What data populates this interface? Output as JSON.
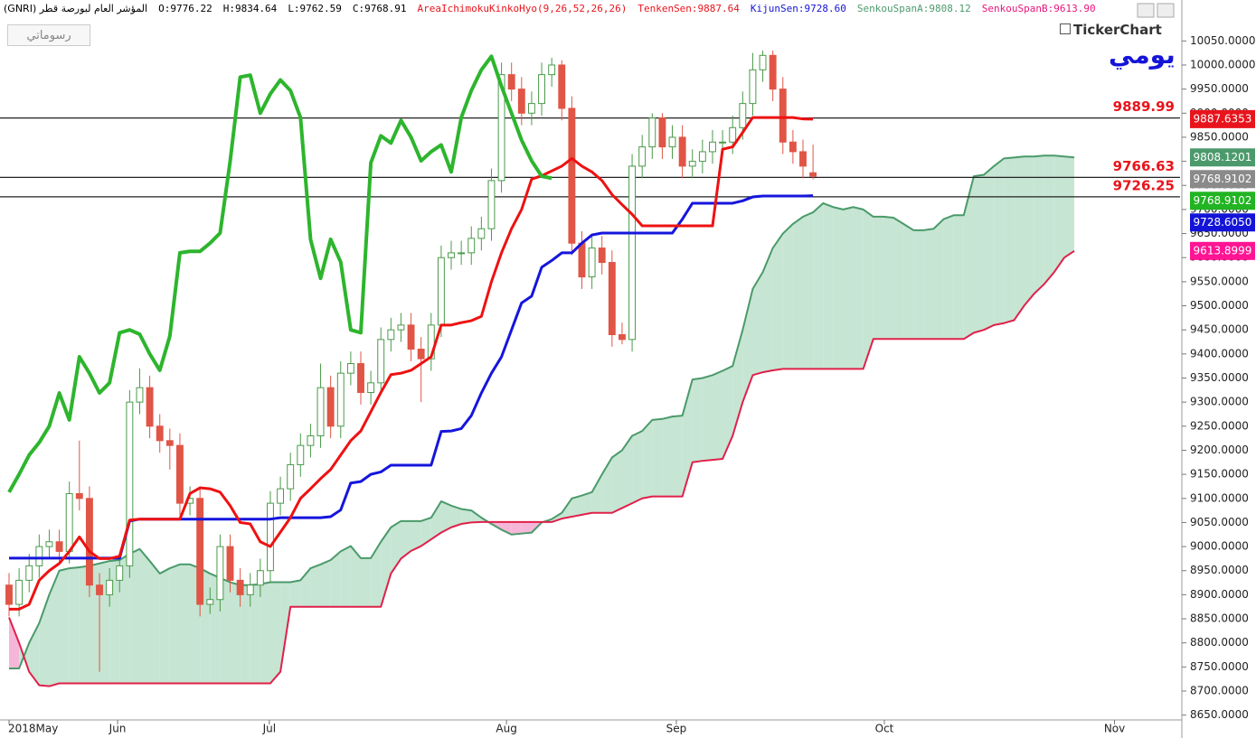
{
  "chart_data": {
    "type": "candlestick",
    "title_items": [
      {
        "text": "المؤشر العام لبورصة قطر (GNRI)",
        "color": "#000000"
      },
      {
        "text": "O:9776.22",
        "color": "#000000"
      },
      {
        "text": "H:9834.64",
        "color": "#000000"
      },
      {
        "text": "L:9762.59",
        "color": "#000000"
      },
      {
        "text": "C:9768.91",
        "color": "#000000"
      },
      {
        "text": "AreaIchimokuKinkoHyo(9,26,52,26,26)",
        "color": "#e8141c"
      },
      {
        "text": "TenkenSen:9887.64",
        "color": "#e8141c"
      },
      {
        "text": "KijunSen:9728.60",
        "color": "#1414d8"
      },
      {
        "text": "SenkouSpanA:9808.12",
        "color": "#4c9a6c"
      },
      {
        "text": "SenkouSpanB:9613.90",
        "color": "#e8147a"
      }
    ],
    "button_label": "رسوماتي",
    "logo": "TickerChart",
    "period": "يومي",
    "up_color": "#4a9a4a",
    "down_color": "#e05545",
    "open": [
      8920,
      8880,
      8930,
      8960,
      9000,
      9010,
      8990,
      9110,
      9100,
      8920,
      8900,
      8930,
      8960,
      9300,
      9330,
      9250,
      9220,
      9210,
      9090,
      9100,
      8880,
      8890,
      9000,
      8930,
      8900,
      8920,
      8950,
      9090,
      9120,
      9170,
      9210,
      9230,
      9330,
      9250,
      9360,
      9380,
      9320,
      9340,
      9430,
      9450,
      9460,
      9410,
      9390,
      9460,
      9600,
      9610,
      9610,
      9640,
      9660,
      9760,
      9980,
      9950,
      9900,
      9920,
      9980,
      10000,
      9910,
      9630,
      9560,
      9620,
      9590,
      9440,
      9430,
      9790,
      9830,
      9890,
      9830,
      9850,
      9790,
      9800,
      9820,
      9840,
      9840,
      9870,
      9920,
      9990,
      10020,
      9950,
      9840,
      9820,
      9776.22
    ],
    "high": [
      8945,
      8955,
      8985,
      9025,
      9035,
      9035,
      9135,
      9220,
      9125,
      8945,
      8955,
      8985,
      9325,
      9370,
      9355,
      9275,
      9245,
      9235,
      9125,
      9125,
      8915,
      9025,
      9025,
      8955,
      8945,
      8975,
      9115,
      9145,
      9195,
      9235,
      9255,
      9380,
      9355,
      9385,
      9405,
      9405,
      9365,
      9455,
      9475,
      9485,
      9485,
      9435,
      9485,
      9625,
      9635,
      9635,
      9665,
      9685,
      9785,
      10005,
      10005,
      9975,
      9945,
      10005,
      10015,
      10010,
      9935,
      9655,
      9645,
      9645,
      9615,
      9465,
      9815,
      9855,
      9900,
      9900,
      9875,
      9875,
      9825,
      9845,
      9865,
      9865,
      9895,
      9945,
      10025,
      10030,
      10030,
      9975,
      9865,
      9845,
      9834.64
    ],
    "low": [
      8855,
      8855,
      8905,
      8935,
      8975,
      8965,
      8965,
      9075,
      8895,
      8740,
      8875,
      8905,
      8935,
      9275,
      9225,
      9195,
      9160,
      9065,
      9065,
      8855,
      8860,
      8865,
      8905,
      8875,
      8875,
      8895,
      8925,
      9065,
      9095,
      9145,
      9185,
      9205,
      9225,
      9225,
      9335,
      9295,
      9295,
      9315,
      9405,
      9425,
      9385,
      9300,
      9365,
      9435,
      9575,
      9585,
      9585,
      9615,
      9635,
      9735,
      9925,
      9875,
      9875,
      9895,
      9955,
      9885,
      9605,
      9535,
      9535,
      9565,
      9415,
      9420,
      9405,
      9765,
      9805,
      9805,
      9805,
      9765,
      9765,
      9775,
      9795,
      9815,
      9815,
      9845,
      9895,
      9965,
      9925,
      9815,
      9795,
      9765,
      9762.59
    ],
    "close": [
      8880,
      8930,
      8960,
      9000,
      9010,
      8990,
      9110,
      9100,
      8920,
      8900,
      8930,
      8960,
      9300,
      9330,
      9250,
      9220,
      9210,
      9090,
      9100,
      8880,
      8890,
      9000,
      8930,
      8900,
      8920,
      8950,
      9090,
      9120,
      9170,
      9210,
      9230,
      9330,
      9250,
      9360,
      9380,
      9320,
      9340,
      9430,
      9450,
      9460,
      9410,
      9390,
      9460,
      9600,
      9610,
      9610,
      9640,
      9660,
      9760,
      9980,
      9950,
      9900,
      9920,
      9980,
      10000,
      9910,
      9630,
      9560,
      9620,
      9590,
      9440,
      9430,
      9790,
      9830,
      9890,
      9830,
      9850,
      9790,
      9800,
      9820,
      9840,
      9840,
      9870,
      9920,
      9990,
      10020,
      9950,
      9840,
      9820,
      9790,
      9768.91
    ],
    "tenkan": {
      "color": "#ee1111",
      "values": [
        8870,
        8870,
        8880,
        8930,
        8950,
        8965,
        8990,
        9020,
        8990,
        8975,
        8975,
        8980,
        9055,
        9057,
        9057,
        9057,
        9057,
        9057,
        9110,
        9122,
        9120,
        9113,
        9085,
        9050,
        9047,
        9010,
        9000,
        9030,
        9060,
        9100,
        9120,
        9141,
        9160,
        9190,
        9220,
        9240,
        9280,
        9320,
        9357,
        9360,
        9366,
        9380,
        9394,
        9460,
        9460,
        9465,
        9469,
        9478,
        9550,
        9610,
        9660,
        9700,
        9763,
        9770,
        9780,
        9790,
        9806,
        9790,
        9778,
        9760,
        9731,
        9710,
        9690,
        9666,
        9666,
        9666,
        9666,
        9666,
        9666,
        9666,
        9666,
        9825,
        9830,
        9860,
        9891,
        9891,
        9891,
        9891,
        9891,
        9888,
        9887.64
      ]
    },
    "kijun": {
      "color": "#1515dd",
      "values": [
        8976,
        8976,
        8976,
        8976,
        8976,
        8976,
        8976,
        8976,
        8976,
        8976,
        8976,
        8976,
        9053,
        9057,
        9057,
        9057,
        9057,
        9057,
        9057,
        9057,
        9057,
        9057,
        9057,
        9057,
        9057,
        9057,
        9057,
        9060,
        9060,
        9060,
        9060,
        9060,
        9062,
        9076,
        9132,
        9135,
        9150,
        9155,
        9169,
        9169,
        9169,
        9169,
        9169,
        9239,
        9240,
        9245,
        9272,
        9319,
        9360,
        9394,
        9450,
        9506,
        9520,
        9580,
        9594,
        9610,
        9610,
        9630,
        9647,
        9651,
        9651,
        9651,
        9651,
        9651,
        9651,
        9651,
        9651,
        9680,
        9713,
        9713,
        9713,
        9713,
        9713,
        9718,
        9726,
        9728,
        9728,
        9728,
        9728,
        9728,
        9728.605
      ]
    },
    "chikou": {
      "color": "#2db52d",
      "values": [
        9113,
        9150,
        9190,
        9216,
        9250,
        9319,
        9263,
        9394,
        9360,
        9319,
        9340,
        9444,
        9450,
        9441,
        9400,
        9366,
        9437,
        9610,
        9613,
        9613,
        9630,
        9651,
        9800,
        9975,
        9979,
        9900,
        9940,
        9969,
        9947,
        9891,
        9638,
        9557,
        9638,
        9591,
        9450,
        9444,
        9797,
        9853,
        9838,
        9885,
        9850,
        9801,
        9820,
        9834,
        9778,
        9891,
        9947,
        9990,
        10018,
        9956,
        9900,
        9844,
        9801,
        9769,
        9765
      ]
    },
    "span_a": {
      "color": "#4a9a6a",
      "values": [
        8747,
        8747,
        8800,
        8841,
        8900,
        8950,
        8955,
        8957,
        8960,
        8965,
        8970,
        8972,
        8985,
        8995,
        8970,
        8944,
        8955,
        8963,
        8963,
        8955,
        8944,
        8935,
        8926,
        8920,
        8920,
        8922,
        8926,
        8926,
        8926,
        8930,
        8955,
        8963,
        8972,
        8990,
        9001,
        8976,
        8976,
        9010,
        9040,
        9053,
        9053,
        9053,
        9060,
        9094,
        9085,
        9078,
        9075,
        9060,
        9047,
        9035,
        9025,
        9027,
        9029,
        9050,
        9057,
        9070,
        9100,
        9106,
        9113,
        9150,
        9185,
        9200,
        9230,
        9240,
        9263,
        9265,
        9270,
        9272,
        9347,
        9350,
        9356,
        9365,
        9375,
        9450,
        9535,
        9570,
        9620,
        9650,
        9670,
        9685,
        9694,
        9713,
        9705,
        9700,
        9705,
        9700,
        9685,
        9685,
        9683,
        9670,
        9657,
        9657,
        9660,
        9680,
        9688,
        9688,
        9769,
        9772,
        9790,
        9806,
        9808,
        9810,
        9810,
        9812,
        9812,
        9810,
        9808.12
      ]
    },
    "span_b": {
      "color": "#e0204a",
      "values": [
        8853,
        8800,
        8740,
        8712,
        8710,
        8716,
        8716,
        8716,
        8716,
        8716,
        8716,
        8716,
        8716,
        8716,
        8716,
        8716,
        8716,
        8716,
        8716,
        8716,
        8716,
        8716,
        8716,
        8716,
        8716,
        8716,
        8716,
        8740,
        8875,
        8875,
        8875,
        8875,
        8875,
        8875,
        8875,
        8875,
        8875,
        8875,
        8944,
        8975,
        8991,
        9001,
        9015,
        9029,
        9040,
        9047,
        9050,
        9051,
        9051,
        9051,
        9051,
        9051,
        9051,
        9051,
        9051,
        9058,
        9062,
        9066,
        9070,
        9070,
        9070,
        9080,
        9090,
        9100,
        9104,
        9104,
        9104,
        9104,
        9175,
        9178,
        9180,
        9182,
        9230,
        9300,
        9356,
        9362,
        9366,
        9369,
        9369,
        9369,
        9369,
        9369,
        9369,
        9369,
        9369,
        9369,
        9431,
        9431,
        9431,
        9431,
        9431,
        9431,
        9431,
        9431,
        9431,
        9431,
        9444,
        9450,
        9460,
        9464,
        9470,
        9500,
        9525,
        9545,
        9570,
        9600,
        9613.9
      ]
    },
    "cloud_up_color": "#c6e5d3",
    "cloud_down_color": "#f6b6d8",
    "horizontal_lines": [
      9889.99,
      9766.63,
      9726.25
    ],
    "horizontal_line_label_color": "#e8141c",
    "price_tags": [
      {
        "value": 9887.6353,
        "label": "9887.6353",
        "color": "#e8141c"
      },
      {
        "value": 9808.1201,
        "label": "9808.1201",
        "color": "#4c9a6c"
      },
      {
        "value": 9768.9102,
        "label": "9768.9102",
        "color": "#8a8a8a"
      },
      {
        "value": 9768.9102,
        "label": "9768.9102",
        "color": "#22b422"
      },
      {
        "value": 9728.605,
        "label": "9728.6050",
        "color": "#1414d8"
      },
      {
        "value": 9613.8999,
        "label": "9613.8999",
        "color": "#ff1493"
      }
    ],
    "xlim": [
      -0.9,
      116.7
    ],
    "xticks": [
      {
        "value": 0,
        "label": "2018May"
      },
      {
        "value": 10.8,
        "label": "Jun"
      },
      {
        "value": 25.9,
        "label": "Jul"
      },
      {
        "value": 49.5,
        "label": "Aug"
      },
      {
        "value": 66.4,
        "label": "Sep"
      },
      {
        "value": 87.1,
        "label": "Oct"
      },
      {
        "value": 110,
        "label": "Nov"
      }
    ],
    "ylim": [
      8640,
      10135
    ],
    "yticks": [
      {
        "value": 8650,
        "label": "8650.0000"
      },
      {
        "value": 8700,
        "label": "8700.0000"
      },
      {
        "value": 8750,
        "label": "8750.0000"
      },
      {
        "value": 8800,
        "label": "8800.0000"
      },
      {
        "value": 8850,
        "label": "8850.0000"
      },
      {
        "value": 8900,
        "label": "8900.0000"
      },
      {
        "value": 8950,
        "label": "8950.0000"
      },
      {
        "value": 9000,
        "label": "9000.0000"
      },
      {
        "value": 9050,
        "label": "9050.0000"
      },
      {
        "value": 9100,
        "label": "9100.0000"
      },
      {
        "value": 9150,
        "label": "9150.0000"
      },
      {
        "value": 9200,
        "label": "9200.0000"
      },
      {
        "value": 9250,
        "label": "9250.0000"
      },
      {
        "value": 9300,
        "label": "9300.0000"
      },
      {
        "value": 9350,
        "label": "9350.0000"
      },
      {
        "value": 9400,
        "label": "9400.0000"
      },
      {
        "value": 9450,
        "label": "9450.0000"
      },
      {
        "value": 9500,
        "label": "9500.0000"
      },
      {
        "value": 9550,
        "label": "9550.0000"
      },
      {
        "value": 9600,
        "label": "9600.0000"
      },
      {
        "value": 9650,
        "label": "9650.0000"
      },
      {
        "value": 9700,
        "label": "9700.0000"
      },
      {
        "value": 9750,
        "label": "9750.0000"
      },
      {
        "value": 9800,
        "label": "9800.0000"
      },
      {
        "value": 9850,
        "label": "9850.0000"
      },
      {
        "value": 9900,
        "label": "9900.0000"
      },
      {
        "value": 9950,
        "label": "9950.0000"
      },
      {
        "value": 10000,
        "label": "10000.0000"
      },
      {
        "value": 10050,
        "label": "10050.0000"
      }
    ],
    "grid": false
  }
}
